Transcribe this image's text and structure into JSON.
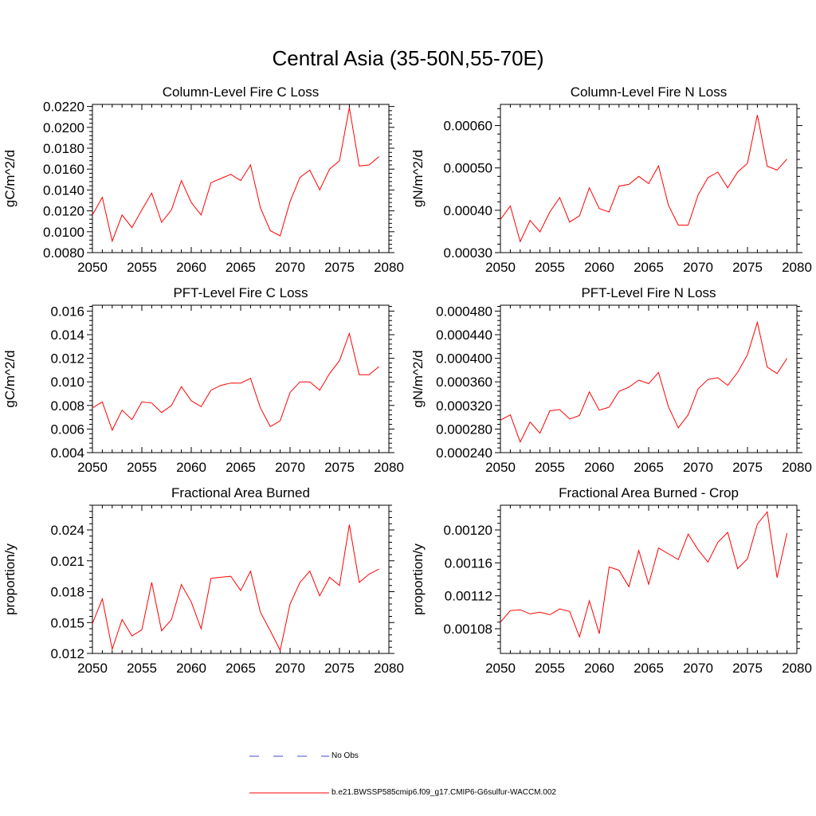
{
  "page_title": "Central Asia (35-50N,55-70E)",
  "legend": {
    "obs_label": "No Obs",
    "model_label": "b.e21.BWSSP585cmip6.f09_g17.CMIP6-G6sulfur-WACCM.002",
    "obs_color": "#4a4ad0",
    "model_color": "#ff0000"
  },
  "chart_data": [
    {
      "type": "line",
      "title": "Column-Level Fire C Loss",
      "ylabel": "gC/m^2/d",
      "xlim": [
        2050,
        2080
      ],
      "ylim": [
        0.008,
        0.0222
      ],
      "xticks": [
        "2050",
        "2055",
        "2060",
        "2065",
        "2070",
        "2075",
        "2080"
      ],
      "yticks": [
        "0.0080",
        "0.0100",
        "0.0120",
        "0.0140",
        "0.0160",
        "0.0180",
        "0.0200",
        "0.0220"
      ],
      "series": [
        {
          "name": "b.e21.BWSSP585cmip6.f09_g17.CMIP6-G6sulfur-WACCM.002",
          "x": [
            2050,
            2051,
            2052,
            2053,
            2054,
            2055,
            2056,
            2057,
            2058,
            2059,
            2060,
            2061,
            2062,
            2063,
            2064,
            2065,
            2066,
            2067,
            2068,
            2069,
            2070,
            2071,
            2072,
            2073,
            2074,
            2075,
            2076,
            2077,
            2078,
            2079
          ],
          "values": [
            0.0116,
            0.0133,
            0.0091,
            0.0116,
            0.0104,
            0.0121,
            0.0137,
            0.0109,
            0.0121,
            0.0149,
            0.0128,
            0.0116,
            0.0147,
            0.0151,
            0.0155,
            0.0149,
            0.0164,
            0.0123,
            0.0101,
            0.0096,
            0.0129,
            0.0152,
            0.0159,
            0.014,
            0.016,
            0.0168,
            0.0219,
            0.0163,
            0.0164,
            0.0172
          ]
        }
      ]
    },
    {
      "type": "line",
      "title": "Column-Level Fire N Loss",
      "ylabel": "gN/m^2/d",
      "xlim": [
        2050,
        2080
      ],
      "ylim": [
        0.0003,
        0.00065
      ],
      "xticks": [
        "2050",
        "2055",
        "2060",
        "2065",
        "2070",
        "2075",
        "2080"
      ],
      "yticks": [
        "0.00030",
        "0.00040",
        "0.00050",
        "0.00060"
      ],
      "series": [
        {
          "name": "b.e21.BWSSP585cmip6.f09_g17.CMIP6-G6sulfur-WACCM.002",
          "x": [
            2050,
            2051,
            2052,
            2053,
            2054,
            2055,
            2056,
            2057,
            2058,
            2059,
            2060,
            2061,
            2062,
            2063,
            2064,
            2065,
            2066,
            2067,
            2068,
            2069,
            2070,
            2071,
            2072,
            2073,
            2074,
            2075,
            2076,
            2077,
            2078,
            2079
          ],
          "values": [
            0.000378,
            0.00041,
            0.000326,
            0.000376,
            0.000349,
            0.000396,
            0.00043,
            0.000372,
            0.000387,
            0.000453,
            0.000404,
            0.000396,
            0.000457,
            0.000461,
            0.00048,
            0.000463,
            0.000505,
            0.000412,
            0.000365,
            0.000365,
            0.000436,
            0.000477,
            0.00049,
            0.000453,
            0.00049,
            0.000511,
            0.000625,
            0.000504,
            0.000495,
            0.000521
          ]
        }
      ]
    },
    {
      "type": "line",
      "title": "PFT-Level Fire C Loss",
      "ylabel": "gC/m^2/d",
      "xlim": [
        2050,
        2080
      ],
      "ylim": [
        0.004,
        0.0165
      ],
      "xticks": [
        "2050",
        "2055",
        "2060",
        "2065",
        "2070",
        "2075",
        "2080"
      ],
      "yticks": [
        "0.004",
        "0.006",
        "0.008",
        "0.010",
        "0.012",
        "0.014",
        "0.016"
      ],
      "series": [
        {
          "name": "b.e21.BWSSP585cmip6.f09_g17.CMIP6-G6sulfur-WACCM.002",
          "x": [
            2050,
            2051,
            2052,
            2053,
            2054,
            2055,
            2056,
            2057,
            2058,
            2059,
            2060,
            2061,
            2062,
            2063,
            2064,
            2065,
            2066,
            2067,
            2068,
            2069,
            2070,
            2071,
            2072,
            2073,
            2074,
            2075,
            2076,
            2077,
            2078,
            2079
          ],
          "values": [
            0.0078,
            0.0083,
            0.0059,
            0.0076,
            0.0068,
            0.0083,
            0.0082,
            0.0074,
            0.008,
            0.0096,
            0.0084,
            0.0079,
            0.0093,
            0.0097,
            0.0099,
            0.0099,
            0.0103,
            0.0078,
            0.0062,
            0.0067,
            0.0091,
            0.01,
            0.01,
            0.0093,
            0.0107,
            0.0118,
            0.0141,
            0.0106,
            0.0106,
            0.0113
          ]
        }
      ]
    },
    {
      "type": "line",
      "title": "PFT-Level Fire N Loss",
      "ylabel": "gN/m^2/d",
      "xlim": [
        2050,
        2080
      ],
      "ylim": [
        0.00024,
        0.00049
      ],
      "xticks": [
        "2050",
        "2055",
        "2060",
        "2065",
        "2070",
        "2075",
        "2080"
      ],
      "yticks": [
        "0.000240",
        "0.000280",
        "0.000320",
        "0.000360",
        "0.000400",
        "0.000440",
        "0.000480"
      ],
      "series": [
        {
          "name": "b.e21.BWSSP585cmip6.f09_g17.CMIP6-G6sulfur-WACCM.002",
          "x": [
            2050,
            2051,
            2052,
            2053,
            2054,
            2055,
            2056,
            2057,
            2058,
            2059,
            2060,
            2061,
            2062,
            2063,
            2064,
            2065,
            2066,
            2067,
            2068,
            2069,
            2070,
            2071,
            2072,
            2073,
            2074,
            2075,
            2076,
            2077,
            2078,
            2079
          ],
          "values": [
            0.000295,
            0.000304,
            0.000258,
            0.000292,
            0.000273,
            0.000311,
            0.000313,
            0.000297,
            0.000303,
            0.000343,
            0.000312,
            0.000317,
            0.000344,
            0.000351,
            0.000363,
            0.000357,
            0.000376,
            0.000318,
            0.000282,
            0.000304,
            0.000348,
            0.000364,
            0.000367,
            0.000354,
            0.000376,
            0.000406,
            0.000461,
            0.000385,
            0.000374,
            0.0004
          ]
        }
      ]
    },
    {
      "type": "line",
      "title": "Fractional Area Burned",
      "ylabel": "proportion/y",
      "xlim": [
        2050,
        2080
      ],
      "ylim": [
        0.012,
        0.0264
      ],
      "xticks": [
        "2050",
        "2055",
        "2060",
        "2065",
        "2070",
        "2075",
        "2080"
      ],
      "yticks": [
        "0.012",
        "0.015",
        "0.018",
        "0.021",
        "0.024"
      ],
      "series": [
        {
          "name": "b.e21.BWSSP585cmip6.f09_g17.CMIP6-G6sulfur-WACCM.002",
          "x": [
            2050,
            2051,
            2052,
            2053,
            2054,
            2055,
            2056,
            2057,
            2058,
            2059,
            2060,
            2061,
            2062,
            2063,
            2064,
            2065,
            2066,
            2067,
            2068,
            2069,
            2070,
            2071,
            2072,
            2073,
            2074,
            2075,
            2076,
            2077,
            2078,
            2079
          ],
          "values": [
            0.0149,
            0.0173,
            0.0124,
            0.0153,
            0.0137,
            0.0143,
            0.0189,
            0.0142,
            0.0153,
            0.0187,
            0.017,
            0.0144,
            0.0193,
            0.0194,
            0.0195,
            0.0181,
            0.02,
            0.016,
            0.0142,
            0.0123,
            0.0168,
            0.0189,
            0.02,
            0.0176,
            0.0194,
            0.0186,
            0.0245,
            0.0189,
            0.0197,
            0.0202
          ]
        }
      ]
    },
    {
      "type": "line",
      "title": "Fractional Area Burned - Crop",
      "ylabel": "proportion/y",
      "xlim": [
        2050,
        2080
      ],
      "ylim": [
        0.00105,
        0.00123
      ],
      "xticks": [
        "2050",
        "2055",
        "2060",
        "2065",
        "2070",
        "2075",
        "2080"
      ],
      "yticks": [
        "0.00108",
        "0.00112",
        "0.00116",
        "0.00120"
      ],
      "series": [
        {
          "name": "b.e21.BWSSP585cmip6.f09_g17.CMIP6-G6sulfur-WACCM.002",
          "x": [
            2050,
            2051,
            2052,
            2053,
            2054,
            2055,
            2056,
            2057,
            2058,
            2059,
            2060,
            2061,
            2062,
            2063,
            2064,
            2065,
            2066,
            2067,
            2068,
            2069,
            2070,
            2071,
            2072,
            2073,
            2074,
            2075,
            2076,
            2077,
            2078,
            2079
          ],
          "values": [
            0.001088,
            0.001102,
            0.001103,
            0.001098,
            0.0011,
            0.001097,
            0.001104,
            0.001101,
            0.00107,
            0.001114,
            0.001074,
            0.001155,
            0.001151,
            0.001131,
            0.001175,
            0.001134,
            0.001178,
            0.001171,
            0.001164,
            0.001195,
            0.001176,
            0.001161,
            0.001185,
            0.001197,
            0.001153,
            0.001165,
            0.001207,
            0.001222,
            0.001142,
            0.001196
          ]
        }
      ]
    }
  ]
}
